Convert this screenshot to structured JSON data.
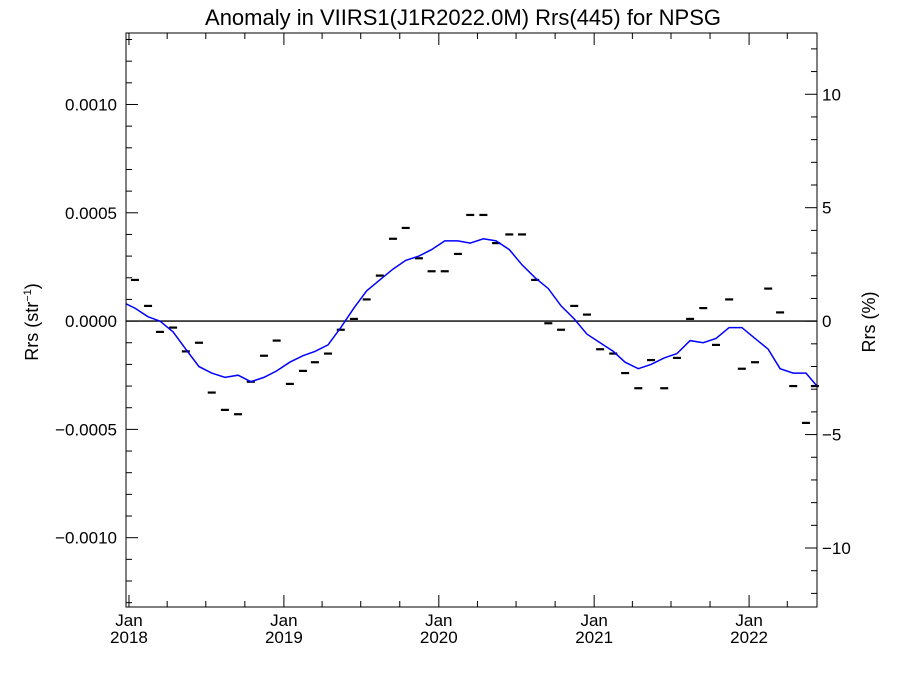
{
  "chart_data": {
    "type": "line",
    "title": "Anomaly in VIIRS1(J1R2022.0M) Rrs(445) for NPSG",
    "ylabel_left": "Rrs (str",
    "ylabel_left_sup": "−1",
    "ylabel_left_close": ")",
    "ylabel_right": "Rrs (%)",
    "xlim": [
      "2017-12-25",
      "2022-06-10"
    ],
    "ylim_left": [
      -0.00132,
      0.00133
    ],
    "ylim_right": [
      -12.6,
      12.7
    ],
    "x_ticks": [
      {
        "date": "2018-01-01",
        "month": "Jan",
        "year": "2018"
      },
      {
        "date": "2019-01-01",
        "month": "Jan",
        "year": "2019"
      },
      {
        "date": "2020-01-01",
        "month": "Jan",
        "year": "2020"
      },
      {
        "date": "2021-01-01",
        "month": "Jan",
        "year": "2021"
      },
      {
        "date": "2022-01-01",
        "month": "Jan",
        "year": "2022"
      }
    ],
    "y_left_ticks": [
      {
        "value": 0.001,
        "label": "0.0010"
      },
      {
        "value": 0.0005,
        "label": "0.0005"
      },
      {
        "value": 0.0,
        "label": "0.0000"
      },
      {
        "value": -0.0005,
        "label": "−0.0005"
      },
      {
        "value": -0.001,
        "label": "−0.0010"
      }
    ],
    "y_right_ticks": [
      {
        "value": 10,
        "label": "10"
      },
      {
        "value": 5,
        "label": "5"
      },
      {
        "value": 0,
        "label": "0"
      },
      {
        "value": -5,
        "label": "−5"
      },
      {
        "value": -10,
        "label": "−10"
      }
    ],
    "zero_line": 0.0,
    "series": [
      {
        "marker": "dash",
        "color": "#000000",
        "points": [
          [
            "2018-01-15",
            0.00019
          ],
          [
            "2018-02-15",
            7e-05
          ],
          [
            "2018-03-15",
            -5e-05
          ],
          [
            "2018-04-15",
            -3e-05
          ],
          [
            "2018-05-15",
            -0.00014
          ],
          [
            "2018-06-15",
            -0.0001
          ],
          [
            "2018-07-15",
            -0.00033
          ],
          [
            "2018-08-15",
            -0.00041
          ],
          [
            "2018-09-15",
            -0.00043
          ],
          [
            "2018-10-15",
            -0.00028
          ],
          [
            "2018-11-15",
            -0.00016
          ],
          [
            "2018-12-15",
            -9e-05
          ],
          [
            "2019-01-15",
            -0.00029
          ],
          [
            "2019-02-15",
            -0.00023
          ],
          [
            "2019-03-15",
            -0.00019
          ],
          [
            "2019-04-15",
            -0.00015
          ],
          [
            "2019-05-15",
            -4e-05
          ],
          [
            "2019-06-15",
            1e-05
          ],
          [
            "2019-07-15",
            0.0001
          ],
          [
            "2019-08-15",
            0.00021
          ],
          [
            "2019-09-15",
            0.00038
          ],
          [
            "2019-10-15",
            0.00043
          ],
          [
            "2019-11-15",
            0.00029
          ],
          [
            "2019-12-15",
            0.00023
          ],
          [
            "2020-01-15",
            0.00023
          ],
          [
            "2020-02-15",
            0.00031
          ],
          [
            "2020-03-15",
            0.00049
          ],
          [
            "2020-04-15",
            0.00049
          ],
          [
            "2020-05-15",
            0.00036
          ],
          [
            "2020-06-15",
            0.0004
          ],
          [
            "2020-07-15",
            0.0004
          ],
          [
            "2020-08-15",
            0.00019
          ],
          [
            "2020-09-15",
            -1e-05
          ],
          [
            "2020-10-15",
            -4e-05
          ],
          [
            "2020-11-15",
            7e-05
          ],
          [
            "2020-12-15",
            3e-05
          ],
          [
            "2021-01-15",
            -0.00013
          ],
          [
            "2021-02-15",
            -0.00015
          ],
          [
            "2021-03-15",
            -0.00024
          ],
          [
            "2021-04-15",
            -0.00031
          ],
          [
            "2021-05-15",
            -0.00018
          ],
          [
            "2021-06-15",
            -0.00031
          ],
          [
            "2021-07-15",
            -0.00017
          ],
          [
            "2021-08-15",
            1e-05
          ],
          [
            "2021-09-15",
            6e-05
          ],
          [
            "2021-10-15",
            -0.00011
          ],
          [
            "2021-11-15",
            0.0001
          ],
          [
            "2021-12-15",
            -0.00022
          ],
          [
            "2022-01-15",
            -0.00019
          ],
          [
            "2022-02-15",
            0.00015
          ],
          [
            "2022-03-15",
            4e-05
          ],
          [
            "2022-04-15",
            -0.0003
          ],
          [
            "2022-05-15",
            -0.00047
          ],
          [
            "2022-06-05",
            -0.0003
          ]
        ]
      },
      {
        "marker": "line",
        "color": "#0000ff",
        "points": [
          [
            "2017-12-25",
            8e-05
          ],
          [
            "2018-01-15",
            6e-05
          ],
          [
            "2018-02-15",
            2e-05
          ],
          [
            "2018-03-15",
            0.0
          ],
          [
            "2018-04-15",
            -5e-05
          ],
          [
            "2018-05-15",
            -0.00013
          ],
          [
            "2018-06-15",
            -0.00021
          ],
          [
            "2018-07-15",
            -0.00024
          ],
          [
            "2018-08-15",
            -0.00026
          ],
          [
            "2018-09-15",
            -0.00025
          ],
          [
            "2018-10-15",
            -0.00028
          ],
          [
            "2018-11-15",
            -0.00026
          ],
          [
            "2018-12-15",
            -0.00023
          ],
          [
            "2019-01-15",
            -0.00019
          ],
          [
            "2019-02-15",
            -0.00016
          ],
          [
            "2019-03-15",
            -0.00014
          ],
          [
            "2019-04-15",
            -0.00011
          ],
          [
            "2019-05-15",
            -3e-05
          ],
          [
            "2019-06-15",
            6e-05
          ],
          [
            "2019-07-15",
            0.00014
          ],
          [
            "2019-08-15",
            0.00019
          ],
          [
            "2019-09-15",
            0.00024
          ],
          [
            "2019-10-15",
            0.00028
          ],
          [
            "2019-11-15",
            0.0003
          ],
          [
            "2019-12-15",
            0.00033
          ],
          [
            "2020-01-15",
            0.00037
          ],
          [
            "2020-02-15",
            0.00037
          ],
          [
            "2020-03-15",
            0.00036
          ],
          [
            "2020-04-15",
            0.00038
          ],
          [
            "2020-05-15",
            0.00037
          ],
          [
            "2020-06-15",
            0.00033
          ],
          [
            "2020-07-15",
            0.00026
          ],
          [
            "2020-08-15",
            0.0002
          ],
          [
            "2020-09-15",
            0.00015
          ],
          [
            "2020-10-15",
            7e-05
          ],
          [
            "2020-11-15",
            1e-05
          ],
          [
            "2020-12-15",
            -6e-05
          ],
          [
            "2021-01-15",
            -0.0001
          ],
          [
            "2021-02-15",
            -0.00014
          ],
          [
            "2021-03-15",
            -0.00019
          ],
          [
            "2021-04-15",
            -0.00022
          ],
          [
            "2021-05-15",
            -0.0002
          ],
          [
            "2021-06-15",
            -0.00017
          ],
          [
            "2021-07-15",
            -0.00015
          ],
          [
            "2021-08-15",
            -9e-05
          ],
          [
            "2021-09-15",
            -0.0001
          ],
          [
            "2021-10-15",
            -8e-05
          ],
          [
            "2021-11-15",
            -3e-05
          ],
          [
            "2021-12-15",
            -3e-05
          ],
          [
            "2022-01-15",
            -8e-05
          ],
          [
            "2022-02-15",
            -0.00013
          ],
          [
            "2022-03-15",
            -0.00022
          ],
          [
            "2022-04-15",
            -0.00024
          ],
          [
            "2022-05-15",
            -0.00024
          ],
          [
            "2022-06-10",
            -0.0003
          ]
        ]
      }
    ]
  }
}
